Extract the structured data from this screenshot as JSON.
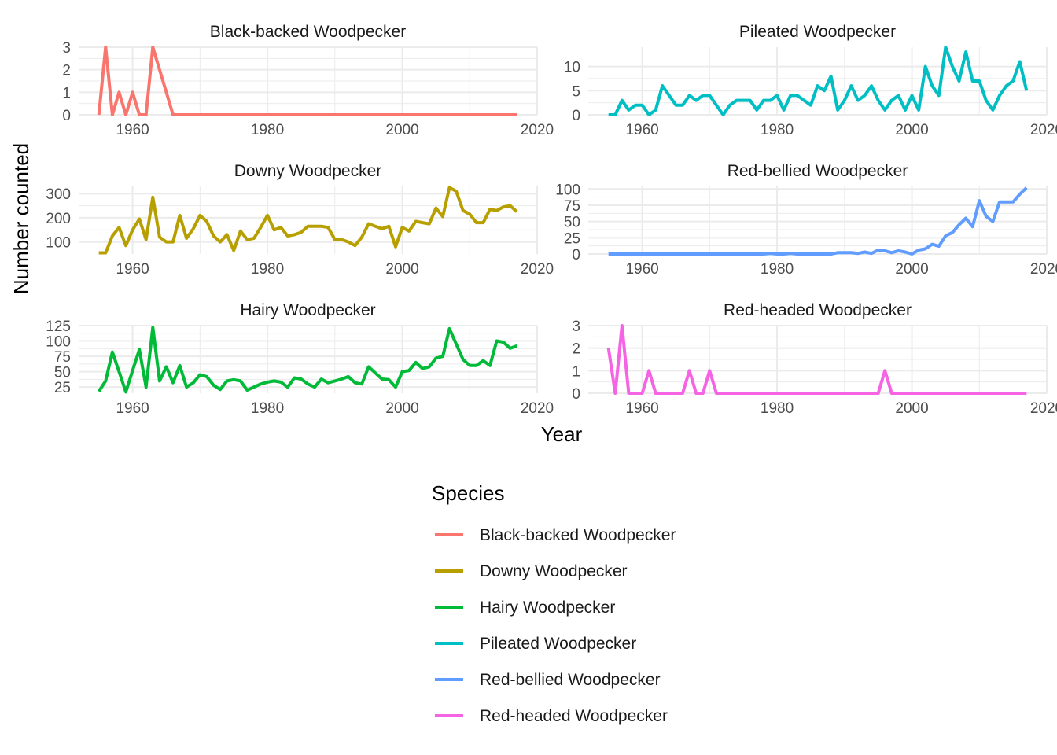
{
  "chart_data": {
    "type": "line",
    "layout": "facet_wrap 3x2 (columns filled top-to-bottom)",
    "xlabel": "Year",
    "ylabel": "Number counted",
    "legend": {
      "title": "Species",
      "placement": "bottom"
    },
    "x_ticks": [
      1960,
      1980,
      2000,
      2020
    ],
    "xlim": [
      1955,
      2017
    ],
    "grid": true,
    "series": [
      {
        "name": "Black-backed Woodpecker",
        "color": "#F8766D",
        "ylim": [
          0,
          3
        ],
        "y_ticks": [
          0,
          1,
          2,
          3
        ],
        "x": [
          1955,
          1956,
          1957,
          1958,
          1959,
          1960,
          1961,
          1962,
          1963,
          1964,
          1965,
          1966,
          1967,
          1970,
          1980,
          1990,
          2000,
          2010,
          2017
        ],
        "y": [
          0,
          3,
          0,
          1,
          0,
          1,
          0,
          0,
          3,
          2,
          1,
          0,
          0,
          0,
          0,
          0,
          0,
          0,
          0
        ]
      },
      {
        "name": "Downy Woodpecker",
        "color": "#B79F00",
        "ylim": [
          50,
          330
        ],
        "y_ticks": [
          100,
          200,
          300
        ],
        "x": [
          1955,
          1956,
          1957,
          1958,
          1959,
          1960,
          1961,
          1962,
          1963,
          1964,
          1965,
          1966,
          1967,
          1968,
          1969,
          1970,
          1971,
          1972,
          1973,
          1974,
          1975,
          1976,
          1977,
          1978,
          1979,
          1980,
          1981,
          1982,
          1983,
          1984,
          1985,
          1986,
          1987,
          1988,
          1989,
          1990,
          1991,
          1992,
          1993,
          1994,
          1995,
          1996,
          1997,
          1998,
          1999,
          2000,
          2001,
          2002,
          2003,
          2004,
          2005,
          2006,
          2007,
          2008,
          2009,
          2010,
          2011,
          2012,
          2013,
          2014,
          2015,
          2016,
          2017
        ],
        "y": [
          55,
          55,
          125,
          160,
          85,
          150,
          195,
          110,
          285,
          120,
          100,
          100,
          210,
          115,
          155,
          210,
          185,
          125,
          100,
          130,
          65,
          145,
          110,
          115,
          160,
          210,
          150,
          160,
          125,
          130,
          140,
          165,
          165,
          165,
          160,
          110,
          110,
          100,
          85,
          120,
          175,
          165,
          155,
          165,
          80,
          160,
          145,
          185,
          180,
          175,
          240,
          205,
          325,
          310,
          230,
          215,
          180,
          180,
          235,
          230,
          245,
          250,
          225
        ]
      },
      {
        "name": "Hairy Woodpecker",
        "color": "#00BA38",
        "ylim": [
          15,
          125
        ],
        "y_ticks": [
          25,
          50,
          75,
          100,
          125
        ],
        "x": [
          1955,
          1956,
          1957,
          1958,
          1959,
          1960,
          1961,
          1962,
          1963,
          1964,
          1965,
          1966,
          1967,
          1968,
          1969,
          1970,
          1971,
          1972,
          1973,
          1974,
          1975,
          1976,
          1977,
          1978,
          1979,
          1980,
          1981,
          1982,
          1983,
          1984,
          1985,
          1986,
          1987,
          1988,
          1989,
          1990,
          1991,
          1992,
          1993,
          1994,
          1995,
          1996,
          1997,
          1998,
          1999,
          2000,
          2001,
          2002,
          2003,
          2004,
          2005,
          2006,
          2007,
          2008,
          2009,
          2010,
          2011,
          2012,
          2013,
          2014,
          2015,
          2016,
          2017
        ],
        "y": [
          18,
          35,
          82,
          50,
          17,
          52,
          86,
          25,
          122,
          35,
          58,
          32,
          60,
          25,
          32,
          45,
          42,
          28,
          21,
          35,
          37,
          35,
          20,
          25,
          30,
          33,
          35,
          33,
          25,
          40,
          38,
          30,
          25,
          38,
          32,
          35,
          38,
          42,
          32,
          30,
          58,
          48,
          38,
          37,
          25,
          50,
          52,
          65,
          55,
          58,
          72,
          75,
          120,
          95,
          70,
          60,
          60,
          68,
          60,
          100,
          98,
          88,
          92
        ]
      },
      {
        "name": "Pileated Woodpecker",
        "color": "#00BFC4",
        "ylim": [
          0,
          14
        ],
        "y_ticks": [
          0,
          5,
          10
        ],
        "x": [
          1955,
          1956,
          1957,
          1958,
          1959,
          1960,
          1961,
          1962,
          1963,
          1964,
          1965,
          1966,
          1967,
          1968,
          1969,
          1970,
          1971,
          1972,
          1973,
          1974,
          1975,
          1976,
          1977,
          1978,
          1979,
          1980,
          1981,
          1982,
          1983,
          1984,
          1985,
          1986,
          1987,
          1988,
          1989,
          1990,
          1991,
          1992,
          1993,
          1994,
          1995,
          1996,
          1997,
          1998,
          1999,
          2000,
          2001,
          2002,
          2003,
          2004,
          2005,
          2006,
          2007,
          2008,
          2009,
          2010,
          2011,
          2012,
          2013,
          2014,
          2015,
          2016,
          2017
        ],
        "y": [
          0,
          0,
          3,
          1,
          2,
          2,
          0,
          1,
          6,
          4,
          2,
          2,
          4,
          3,
          4,
          4,
          2,
          0,
          2,
          3,
          3,
          3,
          1,
          3,
          3,
          4,
          1,
          4,
          4,
          3,
          2,
          6,
          5,
          8,
          1,
          3,
          6,
          3,
          4,
          6,
          3,
          1,
          3,
          4,
          1,
          4,
          1,
          10,
          6,
          4,
          14,
          10,
          7,
          13,
          7,
          7,
          3,
          1,
          4,
          6,
          7,
          11,
          5
        ]
      },
      {
        "name": "Red-bellied Woodpecker",
        "color": "#619CFF",
        "ylim": [
          0,
          104
        ],
        "y_ticks": [
          0,
          25,
          50,
          75,
          100
        ],
        "x": [
          1955,
          1960,
          1970,
          1978,
          1979,
          1980,
          1981,
          1982,
          1983,
          1985,
          1988,
          1989,
          1990,
          1991,
          1992,
          1993,
          1994,
          1995,
          1996,
          1997,
          1998,
          1999,
          2000,
          2001,
          2002,
          2003,
          2004,
          2005,
          2006,
          2007,
          2008,
          2009,
          2010,
          2011,
          2012,
          2013,
          2014,
          2015,
          2016,
          2017
        ],
        "y": [
          0,
          0,
          0,
          0,
          1,
          0,
          0,
          1,
          0,
          0,
          0,
          2,
          2,
          2,
          1,
          3,
          1,
          6,
          5,
          2,
          5,
          3,
          0,
          6,
          8,
          15,
          12,
          28,
          33,
          45,
          55,
          42,
          82,
          58,
          50,
          80,
          80,
          80,
          92,
          102
        ]
      },
      {
        "name": "Red-headed Woodpecker",
        "color": "#F564E3",
        "ylim": [
          0,
          3
        ],
        "y_ticks": [
          0,
          1,
          2,
          3
        ],
        "x": [
          1955,
          1956,
          1957,
          1958,
          1959,
          1960,
          1961,
          1962,
          1963,
          1966,
          1967,
          1968,
          1969,
          1970,
          1971,
          1980,
          1990,
          1995,
          1996,
          1997,
          2000,
          2010,
          2017
        ],
        "y": [
          2,
          0,
          3,
          0,
          0,
          0,
          1,
          0,
          0,
          0,
          1,
          0,
          0,
          1,
          0,
          0,
          0,
          0,
          1,
          0,
          0,
          0,
          0
        ]
      }
    ]
  }
}
